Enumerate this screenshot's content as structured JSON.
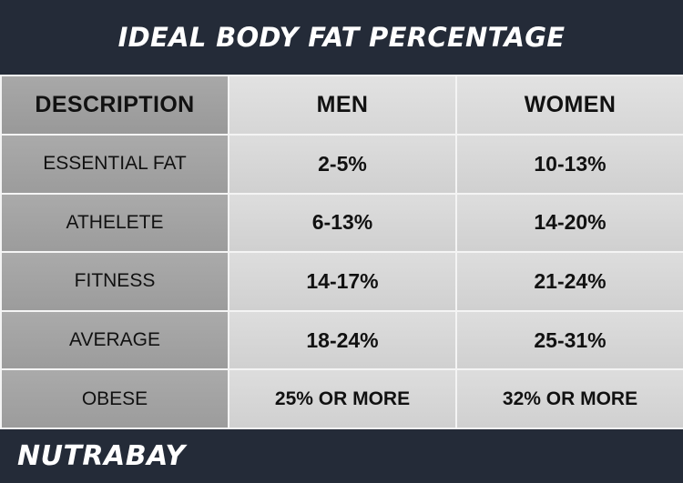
{
  "page": {
    "title": "IDEAL BODY FAT PERCENTAGE",
    "brand": "NUTRABAY"
  },
  "colors": {
    "header_background": "#242b38",
    "title_text": "#ffffff",
    "description_cell": "#a3a3a3",
    "value_cell": "#d8d8d8",
    "table_lines": "#f4f4f4"
  },
  "chart_data": {
    "type": "table",
    "title": "IDEAL BODY FAT PERCENTAGE",
    "columns": [
      "DESCRIPTION",
      "MEN",
      "WOMEN"
    ],
    "rows": [
      {
        "description": "ESSENTIAL FAT",
        "men": "2-5%",
        "women": "10-13%"
      },
      {
        "description": "ATHELETE",
        "men": "6-13%",
        "women": "14-20%"
      },
      {
        "description": "FITNESS",
        "men": "14-17%",
        "women": "21-24%"
      },
      {
        "description": "AVERAGE",
        "men": "18-24%",
        "women": "25-31%"
      },
      {
        "description": "OBESE",
        "men": "25% OR MORE",
        "women": "32% OR MORE"
      }
    ]
  }
}
